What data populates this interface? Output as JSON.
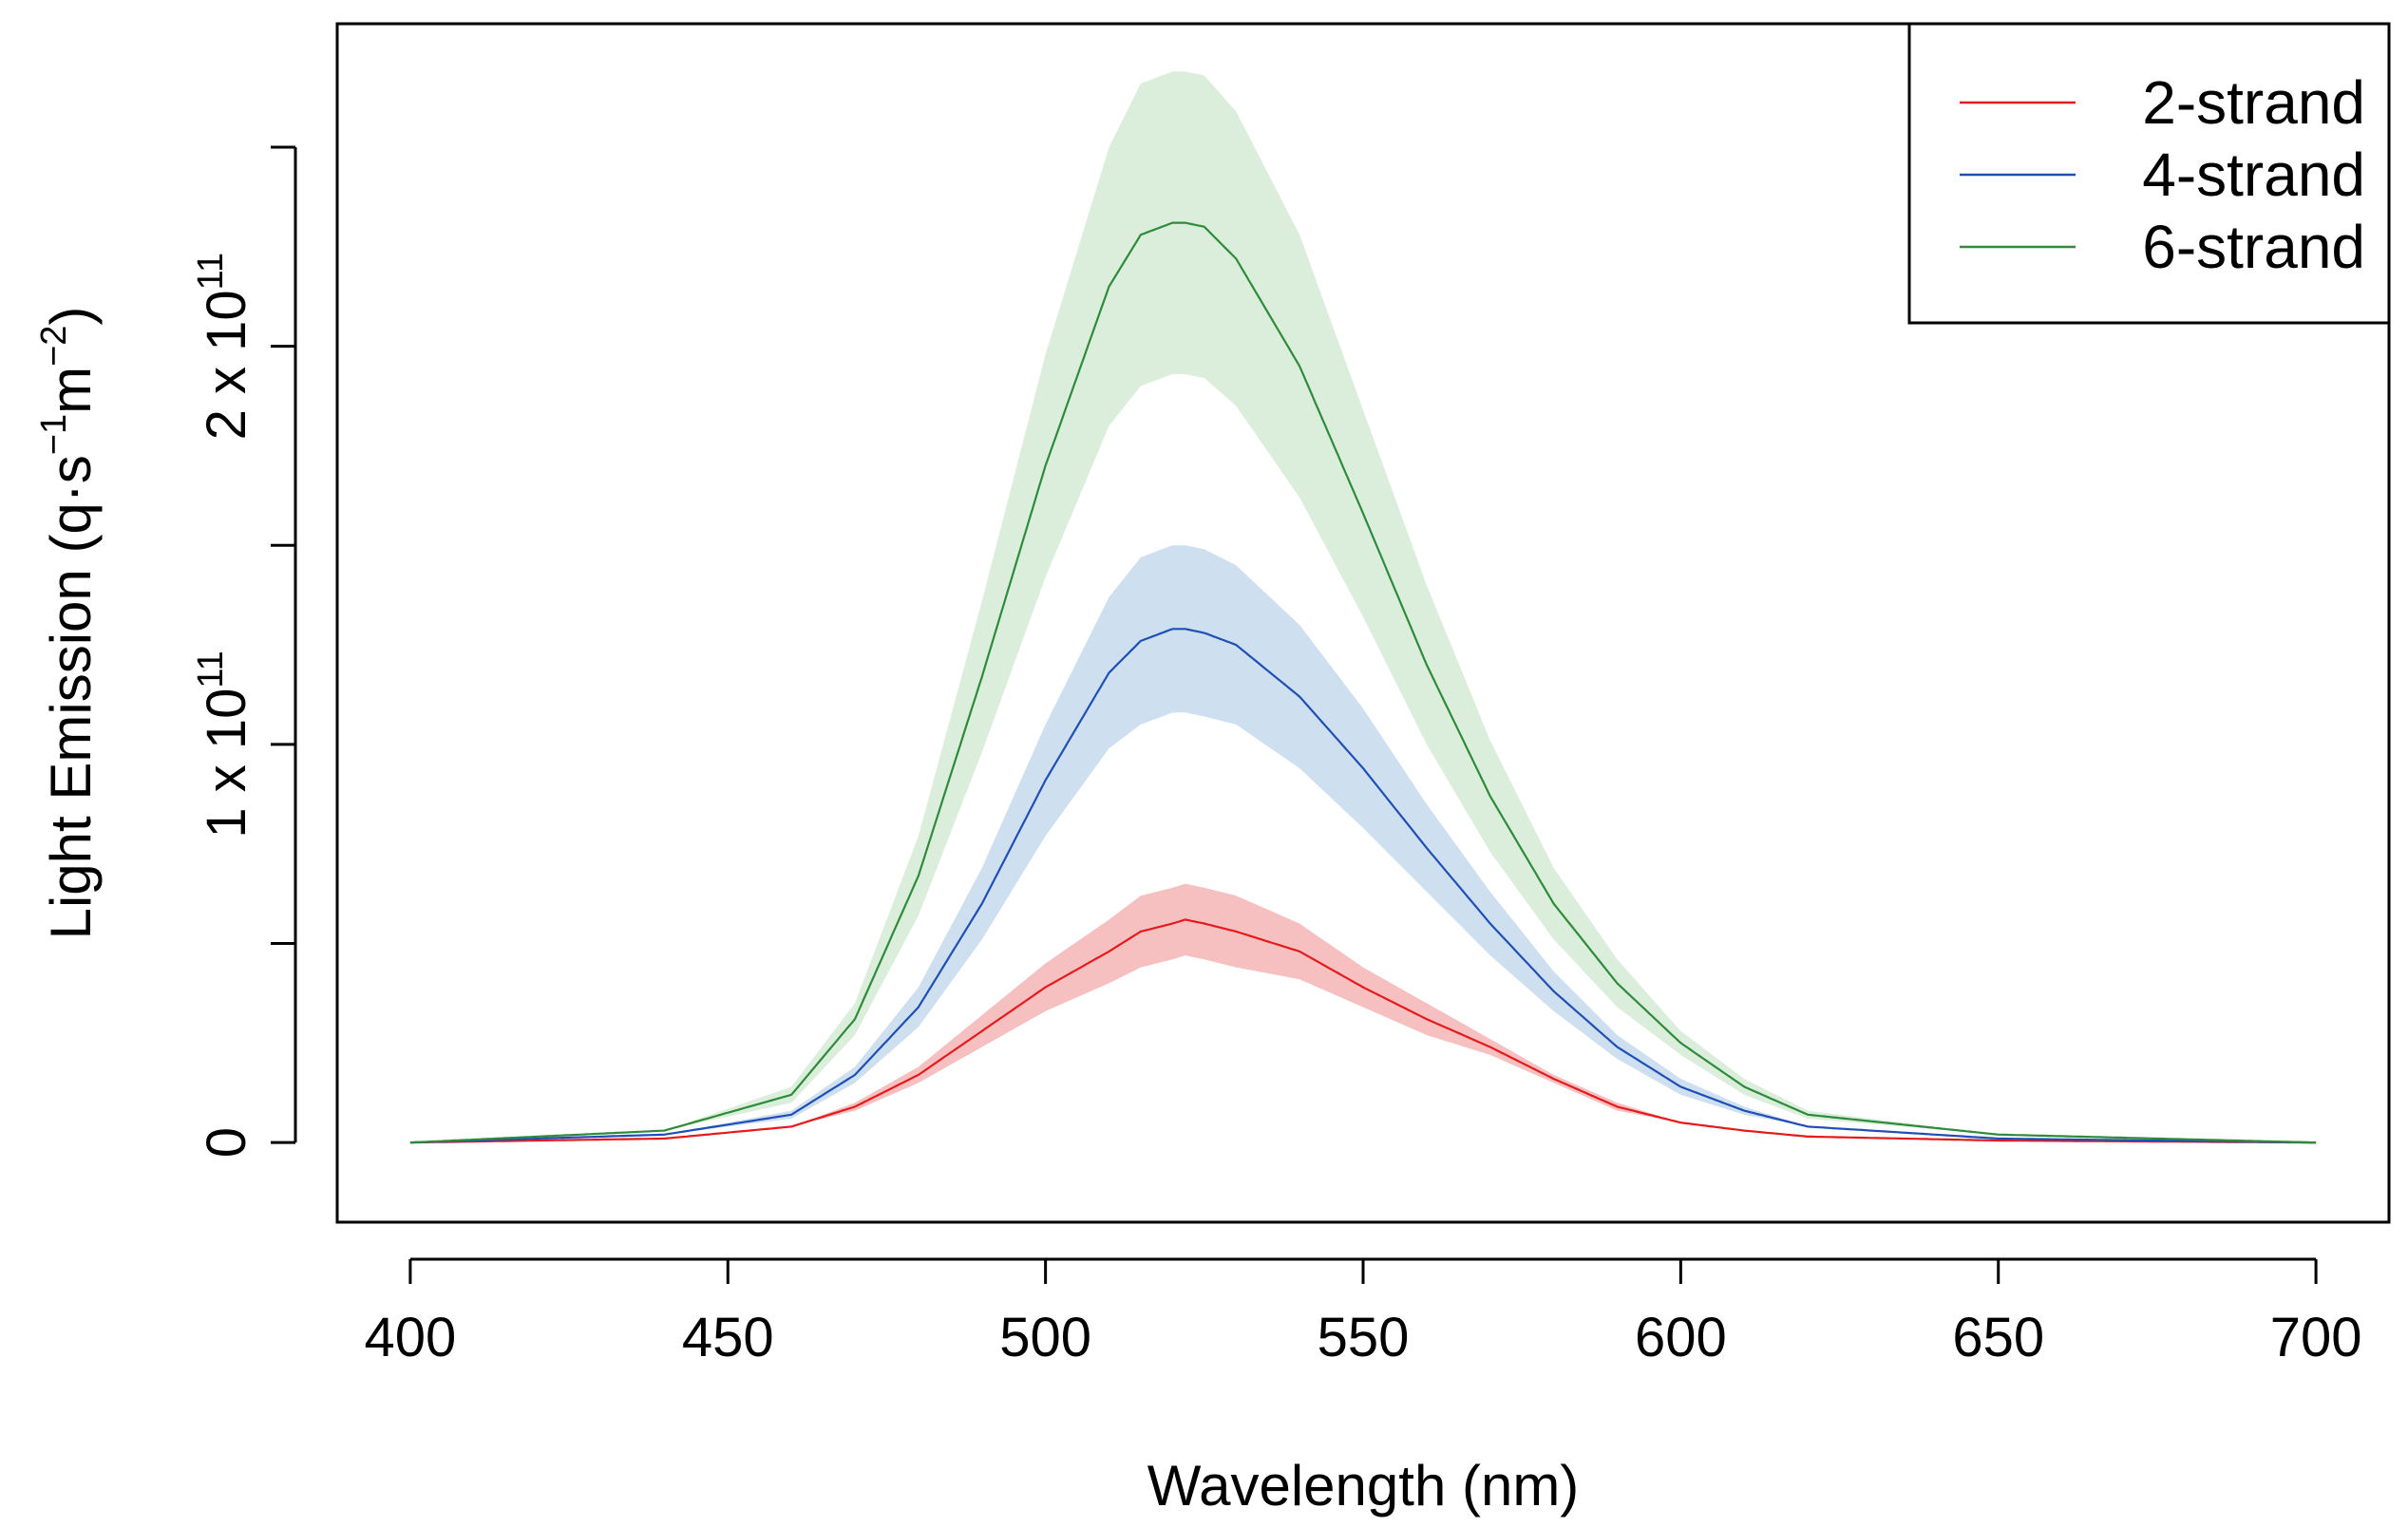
{
  "chart_data": {
    "type": "line",
    "title": "",
    "xlabel": "Wavelength (nm)",
    "ylabel": {
      "text": "Light  Emission  (q·s",
      "sup1": "−1",
      "mid": "m",
      "sup2": "−2",
      "close": ")"
    },
    "xlim": [
      388.5,
      711.5
    ],
    "ylim": [
      -20000000000,
      281000000000
    ],
    "x_ticks": [
      400,
      450,
      500,
      550,
      600,
      650,
      700
    ],
    "x_tick_labels": [
      "400",
      "450",
      "500",
      "550",
      "600",
      "650",
      "700"
    ],
    "y_ticks": [
      0,
      50000000000,
      100000000000,
      150000000000,
      200000000000,
      250000000000
    ],
    "y_tick_labels": [
      {
        "value": 0,
        "base": "0",
        "exp": ""
      },
      {
        "value": 100000000000,
        "base": "1 x 10",
        "exp": "11"
      },
      {
        "value": 200000000000,
        "base": "2 x 10",
        "exp": "11"
      }
    ],
    "legend_position": "top-right",
    "series": [
      {
        "name": "2-strand",
        "color": "#e41a1c",
        "band_color": "#f4b5b6",
        "peak_x": 522,
        "sigma_left": 24,
        "sigma_right": 36,
        "x": [
          400,
          440,
          460,
          470,
          480,
          490,
          500,
          510,
          515,
          520,
          522,
          525,
          530,
          540,
          550,
          560,
          570,
          580,
          590,
          600,
          610,
          620,
          650,
          700
        ],
        "y": [
          0,
          1000000000,
          4000000000,
          9000000000,
          17000000000,
          28000000000,
          39000000000,
          48000000000,
          53000000000,
          55000000000,
          56000000000,
          55000000000,
          53000000000,
          48000000000,
          39000000000,
          31000000000,
          24000000000,
          16000000000,
          9000000000,
          5000000000,
          3000000000,
          1500000000,
          500000000,
          0
        ],
        "band": [
          0,
          0,
          0,
          1000000000,
          2000000000,
          4000000000,
          6000000000,
          8000000000,
          9000000000,
          9000000000,
          9000000000,
          9000000000,
          9000000000,
          7000000000,
          5000000000,
          4000000000,
          2000000000,
          1000000000,
          1000000000,
          0,
          0,
          0,
          0,
          0
        ]
      },
      {
        "name": "4-strand",
        "color": "#1f4fb5",
        "band_color": "#c6d9ec",
        "peak_x": 521,
        "sigma_left": 24,
        "sigma_right": 36,
        "x": [
          400,
          440,
          460,
          470,
          480,
          490,
          500,
          510,
          515,
          520,
          522,
          525,
          530,
          540,
          550,
          560,
          570,
          580,
          590,
          600,
          610,
          620,
          650,
          700
        ],
        "y": [
          0,
          2000000000,
          7000000000,
          17000000000,
          34000000000,
          60000000000,
          91000000000,
          118000000000,
          126000000000,
          129000000000,
          129000000000,
          128000000000,
          125000000000,
          112000000000,
          94000000000,
          74000000000,
          55000000000,
          38000000000,
          24000000000,
          14000000000,
          8000000000,
          4000000000,
          1000000000,
          0
        ],
        "band": [
          0,
          0,
          1000000000,
          2000000000,
          5000000000,
          9000000000,
          14000000000,
          19000000000,
          21000000000,
          21000000000,
          21000000000,
          21000000000,
          20000000000,
          18000000000,
          15000000000,
          11000000000,
          8000000000,
          5000000000,
          3000000000,
          2000000000,
          1000000000,
          0,
          0,
          0
        ]
      },
      {
        "name": "6-strand",
        "color": "#2e8b3a",
        "band_color": "#d5ebd5",
        "peak_x": 522,
        "sigma_left": 24,
        "sigma_right": 36,
        "x": [
          400,
          440,
          460,
          470,
          480,
          490,
          500,
          510,
          515,
          520,
          522,
          525,
          530,
          540,
          550,
          560,
          570,
          580,
          590,
          600,
          610,
          620,
          650,
          700
        ],
        "y": [
          0,
          3000000000,
          12000000000,
          31000000000,
          67000000000,
          117000000000,
          170000000000,
          215000000000,
          228000000000,
          231000000000,
          231000000000,
          230000000000,
          222000000000,
          195000000000,
          158000000000,
          120000000000,
          87000000000,
          60000000000,
          40000000000,
          25000000000,
          14000000000,
          7000000000,
          2000000000,
          0
        ],
        "band": [
          0,
          0,
          2000000000,
          4000000000,
          10000000000,
          19000000000,
          28000000000,
          35000000000,
          38000000000,
          38000000000,
          38000000000,
          38000000000,
          37000000000,
          33000000000,
          26000000000,
          20000000000,
          14000000000,
          9000000000,
          6000000000,
          3000000000,
          2000000000,
          1000000000,
          0,
          0
        ]
      }
    ]
  }
}
